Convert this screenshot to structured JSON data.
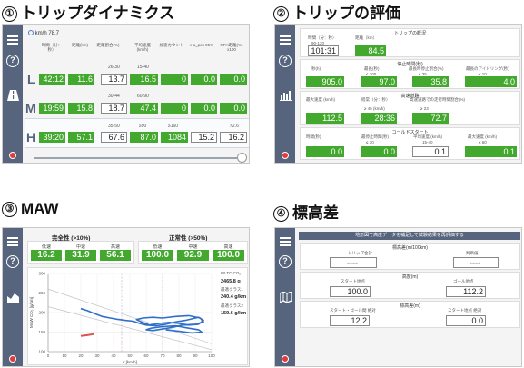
{
  "q1": {
    "number": "①",
    "title": "トリップダイナミクス",
    "speed_readout": "km/h 78.7",
    "headers": [
      "時間（分：秒）",
      "距離(km)",
      "距離割合(%)",
      "平均速度(km/h)",
      "加速カウント",
      "v·a_pos 95%",
      "RPA距離(%) x100"
    ],
    "rows": [
      {
        "letter": "L",
        "ranges": [
          "",
          "",
          "26-30",
          "15-40",
          "",
          "",
          ""
        ],
        "values": [
          "42:12",
          "11.6",
          "13.7",
          "16.5",
          "0",
          "0.0",
          "0.0"
        ],
        "green": [
          true,
          true,
          false,
          true,
          true,
          true,
          true
        ]
      },
      {
        "letter": "M",
        "ranges": [
          "",
          "",
          "30-44",
          "60-90",
          "",
          "",
          ""
        ],
        "values": [
          "19:59",
          "15.8",
          "18.7",
          "47.4",
          "0",
          "0.0",
          "0.0"
        ],
        "green": [
          true,
          true,
          false,
          true,
          true,
          true,
          true
        ]
      },
      {
        "letter": "H",
        "ranges": [
          "",
          "",
          "35-50",
          "≥90",
          "≥160",
          "",
          ">2.6"
        ],
        "values": [
          "39:20",
          "57.1",
          "67.6",
          "87.0",
          "1084",
          "15.2",
          "16.2"
        ],
        "green": [
          true,
          true,
          false,
          true,
          true,
          false,
          false
        ]
      }
    ]
  },
  "q2": {
    "number": "②",
    "title": "トリップの評価",
    "sections": [
      {
        "head": "トリップの概況",
        "labels": [
          "時間（分：秒）",
          "距離（km）"
        ],
        "ranges": [
          "90-120",
          ""
        ],
        "values": [
          "101:31",
          "84.5"
        ],
        "green": [
          false,
          true
        ]
      },
      {
        "head": "停止時間(秒)",
        "labels": [
          "秒(h)",
          "最長(秒)",
          "最長時停止割合(%)",
          "最長のアイドリング(秒)"
        ],
        "ranges": [
          "",
          "≤ 300",
          "≤ 35",
          "≤ 10"
        ],
        "values": [
          "905.0",
          "97.0",
          "35.8",
          "4.0"
        ],
        "green": [
          true,
          true,
          true,
          true
        ]
      },
      {
        "head": "高速道路",
        "labels": [
          "最大速度 (km/h)",
          "経常（分：秒）",
          "高速道路での走行時間割合(%)"
        ],
        "ranges": [
          "",
          "≥ 45 (km/h)",
          "≥ 23"
        ],
        "values": [
          "112.5",
          "28:36",
          "72.7"
        ],
        "green": [
          true,
          true,
          true
        ]
      },
      {
        "head": "コールドスタート",
        "labels": [
          "時間(秒)",
          "最停止時間(秒)",
          "平均速度 (km/h)",
          "最大速度 (km/h)"
        ],
        "ranges": [
          "",
          "≤ 30",
          "15-40",
          "≤ 60"
        ],
        "values": [
          "0.0",
          "0.0",
          "0.1",
          "0.1"
        ],
        "green": [
          true,
          true,
          false,
          true
        ]
      }
    ]
  },
  "q3": {
    "number": "③",
    "title": "MAW",
    "left_panel": {
      "title": "完全性 (>10%)",
      "labels": [
        "低速",
        "中速",
        "高速"
      ],
      "values": [
        "16.2",
        "31.9",
        "56.1"
      ]
    },
    "right_panel": {
      "title": "正常性 (>50%)",
      "labels": [
        "低速",
        "中速",
        "高速"
      ],
      "values": [
        "100.0",
        "92.9",
        "100.0"
      ]
    },
    "side": [
      {
        "label": "WLTC CO₂",
        "value": "2465.8 g"
      },
      {
        "label": "最適クラス1",
        "value": "240.4 g/km"
      },
      {
        "label": "最適クラス2",
        "value": "159.6 g/km"
      }
    ],
    "chart_data": {
      "type": "line",
      "xlabel": "v [km/h]",
      "ylabel": "MAW CO₂ [g/km]",
      "x_ticks": [
        "0",
        "10",
        "20",
        "30",
        "40",
        "50",
        "60",
        "70",
        "80",
        "90",
        "100"
      ],
      "y_ticks": [
        "100",
        "150",
        "200",
        "250",
        "300"
      ],
      "xlim": [
        0,
        100
      ],
      "ylim": [
        100,
        300
      ],
      "series": [
        {
          "color": "#2f6fc9",
          "x": [
            20,
            24,
            28,
            33,
            38,
            42,
            47,
            52,
            56,
            60,
            66,
            72,
            78,
            84,
            88,
            92,
            95,
            92,
            86,
            80,
            74,
            68,
            62,
            57,
            54,
            58,
            64,
            70,
            78,
            86,
            93,
            95,
            90,
            82,
            76,
            70,
            64,
            60,
            63,
            70,
            78,
            86,
            92,
            94,
            88,
            80,
            72
          ],
          "y": [
            210,
            205,
            198,
            190,
            186,
            183,
            180,
            178,
            172,
            168,
            166,
            170,
            176,
            180,
            184,
            188,
            180,
            170,
            168,
            172,
            175,
            172,
            168,
            176,
            182,
            186,
            188,
            186,
            190,
            192,
            186,
            176,
            170,
            168,
            162,
            158,
            154,
            156,
            160,
            164,
            166,
            160,
            156,
            150,
            148,
            152,
            156
          ]
        },
        {
          "color": "#d9534f",
          "x": [
            20,
            24,
            28
          ],
          "y": [
            140,
            142,
            145
          ]
        }
      ]
    }
  },
  "q4": {
    "number": "④",
    "title": "標高差",
    "banner": "地形図で高度データを補足して試験結果を再評価する",
    "sections": [
      {
        "head": "標高差(m/100km)",
        "labels": [
          "トリップ合計",
          "判断値"
        ],
        "values": [
          "----",
          "----"
        ]
      },
      {
        "head": "高度(m)",
        "labels": [
          "スタート地点",
          "ゴール地点"
        ],
        "values": [
          "100.0",
          "112.2"
        ]
      },
      {
        "head": "標高差(m)",
        "labels": [
          "スタート・ゴール間 絶対",
          "スタート地点 絶対"
        ],
        "values": [
          "12.2",
          "0.0"
        ]
      }
    ]
  }
}
